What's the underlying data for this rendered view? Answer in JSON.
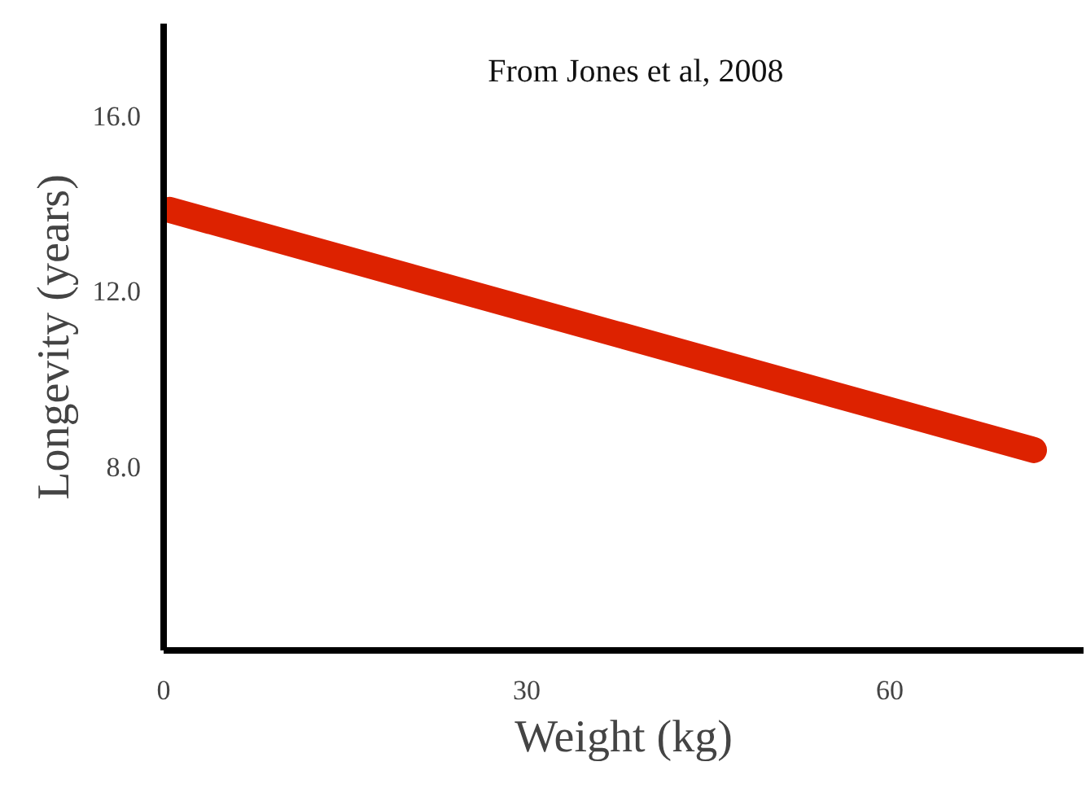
{
  "chart_data": {
    "type": "line",
    "xlabel": "Weight (kg)",
    "ylabel": "Longevity (years)",
    "annotations": [
      "From Jones et al, 2008"
    ],
    "x": [
      0.5,
      71.9
    ],
    "series": [
      {
        "color": "#dd2200",
        "values": [
          13.85,
          8.37
        ]
      }
    ],
    "xlim": [
      0,
      76
    ],
    "ylim": [
      3.8,
      18.1
    ],
    "xticks": [
      0,
      30,
      60
    ],
    "yticks": [
      {
        "value": 8,
        "label": "8.0"
      },
      {
        "value": 12,
        "label": "12.0"
      },
      {
        "value": 16,
        "label": "16.0"
      }
    ],
    "grid": false,
    "line_style": "solid"
  }
}
